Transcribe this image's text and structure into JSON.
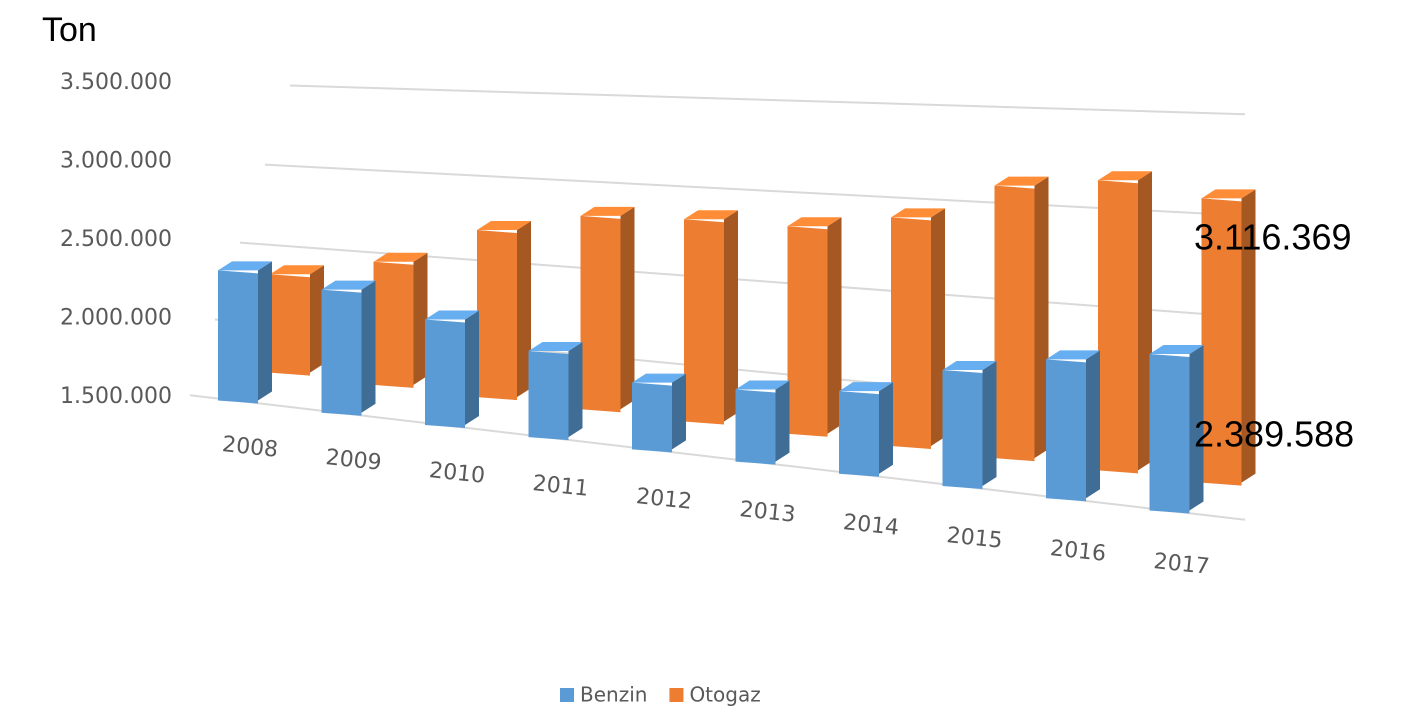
{
  "chart_data": {
    "type": "bar3d",
    "title": "Ton",
    "categories": [
      "2008",
      "2009",
      "2010",
      "2011",
      "2012",
      "2013",
      "2014",
      "2015",
      "2016",
      "2017"
    ],
    "series": [
      {
        "name": "Benzin",
        "color": "#5b9bd5",
        "values": [
          2240000,
          2200000,
          2100000,
          1990000,
          1880000,
          1910000,
          1970000,
          2160000,
          2290000,
          2389588
        ],
        "value_labels": [
          null,
          null,
          null,
          null,
          null,
          null,
          null,
          null,
          null,
          "2.389.588"
        ]
      },
      {
        "name": "Otogaz",
        "color": "#ed7d31",
        "values": [
          2060000,
          2200000,
          2450000,
          2600000,
          2650000,
          2680000,
          2800000,
          3050000,
          3150000,
          3116369
        ],
        "value_labels": [
          null,
          null,
          null,
          null,
          null,
          null,
          null,
          null,
          null,
          "3.116.369"
        ]
      }
    ],
    "ylim": [
      1500000,
      3500000
    ],
    "yticks": [
      {
        "value": 1500000,
        "label": "1.500.000"
      },
      {
        "value": 2000000,
        "label": "2.000.000"
      },
      {
        "value": 2500000,
        "label": "2.500.000"
      },
      {
        "value": 3000000,
        "label": "3.000.000"
      },
      {
        "value": 3500000,
        "label": "3.500.000"
      }
    ],
    "grid": true,
    "legend": "bottom"
  }
}
